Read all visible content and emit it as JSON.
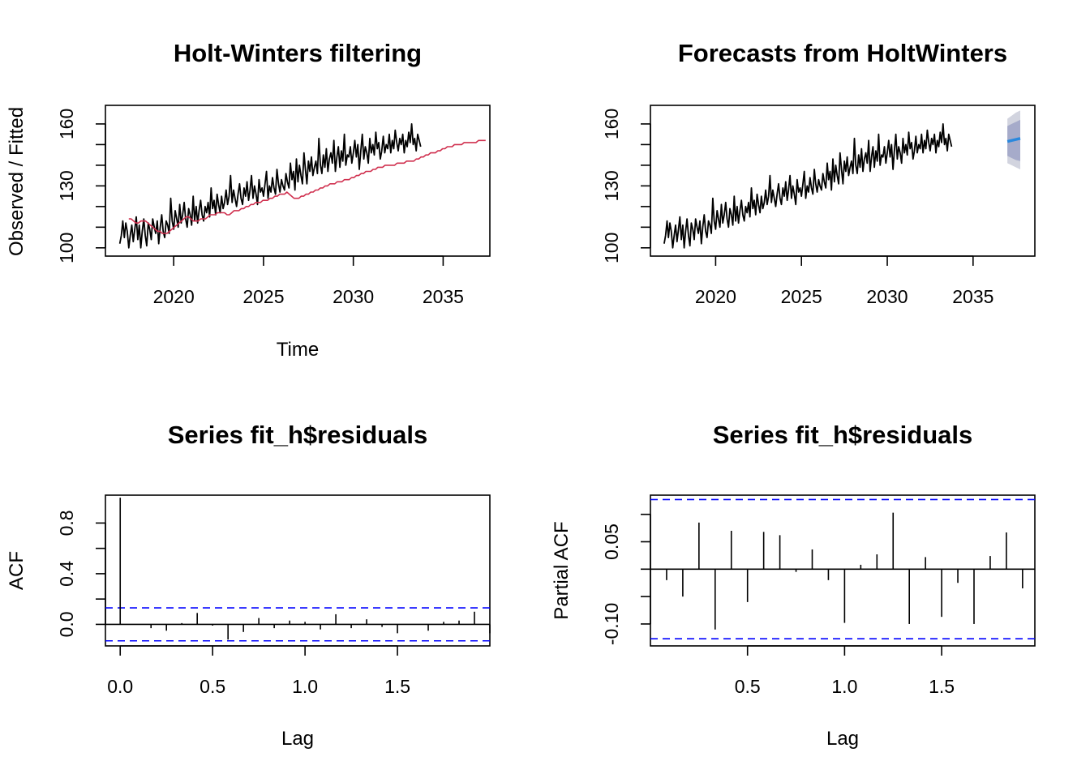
{
  "figure": {
    "background": "#ffffff"
  },
  "chart_data": [
    {
      "type": "line",
      "title": "Holt-Winters filtering",
      "xlabel": "Time",
      "ylabel": "Observed / Fitted",
      "xlim": [
        2016.2,
        2037.6
      ],
      "ylim": [
        96,
        169
      ],
      "xticks": [
        2020,
        2025,
        2030,
        2035
      ],
      "xtick_labels": [
        "2020",
        "2025",
        "2030",
        "2035"
      ],
      "yticks": [
        100,
        110,
        120,
        130,
        140,
        150,
        160
      ],
      "ytick_labels": [
        "100",
        "",
        "",
        "130",
        "",
        "",
        "160"
      ],
      "x_start": 2017.0,
      "x_step": 0.0833333,
      "series": [
        {
          "color": "#000000",
          "values": [
            102,
            106,
            113,
            105,
            112,
            108,
            100,
            106,
            111,
            103,
            109,
            115,
            104,
            111,
            100,
            108,
            114,
            106,
            101,
            112,
            109,
            104,
            114,
            110,
            107,
            113,
            102,
            110,
            116,
            108,
            105,
            113,
            111,
            107,
            124,
            113,
            109,
            118,
            114,
            110,
            121,
            112,
            116,
            122,
            114,
            110,
            119,
            116,
            111,
            125,
            113,
            120,
            112,
            118,
            123,
            116,
            113,
            120,
            117,
            122,
            115,
            129,
            119,
            123,
            116,
            126,
            121,
            117,
            125,
            119,
            122,
            128,
            121,
            125,
            135,
            122,
            128,
            124,
            120,
            126,
            131,
            124,
            121,
            129,
            125,
            132,
            123,
            128,
            135,
            124,
            130,
            126,
            121,
            133,
            127,
            129,
            125,
            131,
            137,
            124,
            130,
            127,
            134,
            129,
            126,
            138,
            131,
            127,
            133,
            130,
            128,
            136,
            132,
            129,
            141,
            133,
            137,
            128,
            143,
            132,
            140,
            135,
            131,
            146,
            138,
            131,
            142,
            137,
            144,
            135,
            139,
            142,
            136,
            153,
            140,
            136,
            145,
            139,
            148,
            137,
            143,
            146,
            141,
            152,
            137,
            144,
            149,
            139,
            147,
            142,
            155,
            140,
            145,
            144,
            149,
            141,
            146,
            152,
            144,
            150,
            138,
            147,
            155,
            143,
            149,
            146,
            141,
            153,
            146,
            150,
            145,
            156,
            148,
            151,
            143,
            147,
            154,
            146,
            150,
            148,
            155,
            146,
            152,
            148,
            157,
            151,
            147,
            153,
            150,
            155,
            146,
            152,
            149,
            156,
            151,
            160,
            150,
            153,
            147,
            155,
            152,
            149
          ]
        },
        {
          "color": "#d0304f",
          "values": [
            114,
            114,
            113,
            112,
            112,
            113,
            113,
            113,
            112,
            111,
            110,
            109,
            108,
            108,
            107,
            107,
            107,
            108,
            109,
            110,
            111,
            112,
            113,
            114,
            115,
            115,
            114,
            113,
            113,
            113,
            114,
            114,
            114,
            115,
            116,
            116,
            116,
            117,
            117,
            117,
            117,
            116,
            116,
            117,
            118,
            118,
            118,
            119,
            119,
            120,
            120,
            121,
            121,
            122,
            122,
            122,
            123,
            123,
            123,
            124,
            124,
            125,
            125,
            126,
            126,
            126,
            127,
            126,
            125,
            124,
            124,
            124,
            125,
            125,
            126,
            126,
            127,
            127,
            128,
            128,
            129,
            129,
            130,
            130,
            131,
            131,
            131,
            132,
            132,
            132,
            133,
            133,
            133,
            134,
            134,
            135,
            135,
            136,
            136,
            137,
            137,
            137,
            138,
            138,
            139,
            139,
            139,
            140,
            140,
            140,
            140,
            140,
            141,
            141,
            141,
            141,
            142,
            142,
            142,
            142,
            143,
            143,
            144,
            144,
            145,
            145,
            146,
            146,
            146,
            147,
            147,
            148,
            148,
            149,
            149,
            149,
            150,
            150,
            150,
            150,
            151,
            151,
            151,
            151,
            151,
            151,
            152,
            152,
            152,
            152
          ]
        }
      ]
    },
    {
      "type": "line",
      "title": "Forecasts from HoltWinters",
      "xlim": [
        2016.2,
        2038.6
      ],
      "ylim": [
        96,
        169
      ],
      "xticks": [
        2020,
        2025,
        2030,
        2035
      ],
      "xtick_labels": [
        "2020",
        "2025",
        "2030",
        "2035"
      ],
      "yticks": [
        100,
        110,
        120,
        130,
        140,
        150,
        160
      ],
      "ytick_labels": [
        "100",
        "",
        "",
        "130",
        "",
        "",
        "160"
      ],
      "x_start": 2017.0,
      "x_step": 0.0833333,
      "forecast": {
        "x": [
          2037.0,
          2037.25,
          2037.5,
          2037.75
        ],
        "mean": [
          151.5,
          152.0,
          152.5,
          153.0
        ],
        "lo80": [
          144.5,
          143.5,
          142.5,
          142.0
        ],
        "hi80": [
          159.0,
          160.0,
          161.0,
          162.0
        ],
        "lo95": [
          141.0,
          140.0,
          139.0,
          138.0
        ],
        "hi95": [
          162.5,
          164.0,
          165.5,
          166.5
        ],
        "mean_color": "#2a88dd",
        "band80_color": "#a6abca",
        "band95_color": "#d2d4df"
      }
    },
    {
      "type": "bar",
      "title": "Series  fit_h$residuals",
      "xlabel": "Lag",
      "ylabel": "ACF",
      "xlim": [
        -0.08,
        2.0
      ],
      "ylim": [
        -0.17,
        1.02
      ],
      "xticks": [
        0.0,
        0.5,
        1.0,
        1.5
      ],
      "xtick_labels": [
        "0.0",
        "0.5",
        "1.0",
        "1.5"
      ],
      "yticks": [
        0.0,
        0.2,
        0.4,
        0.6,
        0.8
      ],
      "ytick_labels": [
        "0.0",
        "",
        "0.4",
        "",
        "0.8"
      ],
      "ci": 0.13,
      "ci_color": "#0000ff",
      "lag_step": 0.0833333,
      "values": [
        1.0,
        0.0,
        -0.03,
        -0.05,
        0.01,
        0.09,
        -0.01,
        -0.12,
        -0.06,
        0.05,
        -0.03,
        0.03,
        0.02,
        -0.04,
        0.08,
        -0.03,
        0.04,
        -0.02,
        -0.07,
        0.0,
        -0.05,
        0.02,
        0.03,
        0.1,
        -0.07,
        0.01,
        -0.02,
        0.01,
        0.04,
        -0.06,
        0.01,
        -0.09,
        -0.02,
        0.06,
        0.0,
        0.07,
        -0.09,
        0.02,
        0.01,
        0.0,
        -0.02,
        0.03,
        -0.05,
        0.07,
        -0.06,
        0.09,
        -0.03,
        -0.01,
        0.01,
        -0.03,
        -0.01,
        0.05,
        0.0
      ]
    },
    {
      "type": "bar",
      "title": "Series  fit_h$residuals",
      "xlabel": "Lag",
      "ylabel": "Partial ACF",
      "xlim": [
        0.0,
        1.98
      ],
      "ylim": [
        -0.14,
        0.135
      ],
      "xticks": [
        0.5,
        1.0,
        1.5
      ],
      "xtick_labels": [
        "0.5",
        "1.0",
        "1.5"
      ],
      "yticks": [
        -0.1,
        -0.05,
        0.0,
        0.05,
        0.1
      ],
      "ytick_labels": [
        "-0.10",
        "",
        "",
        "0.05",
        ""
      ],
      "ci": 0.127,
      "ci_color": "#0000ff",
      "lag_step": 0.0833333,
      "values": [
        -0.02,
        -0.05,
        0.085,
        -0.11,
        0.07,
        -0.06,
        0.068,
        0.062,
        -0.005,
        0.036,
        -0.02,
        -0.098,
        0.008,
        0.027,
        0.103,
        -0.1,
        0.022,
        -0.087,
        -0.025,
        -0.1,
        0.024,
        0.067,
        -0.035
      ]
    }
  ]
}
